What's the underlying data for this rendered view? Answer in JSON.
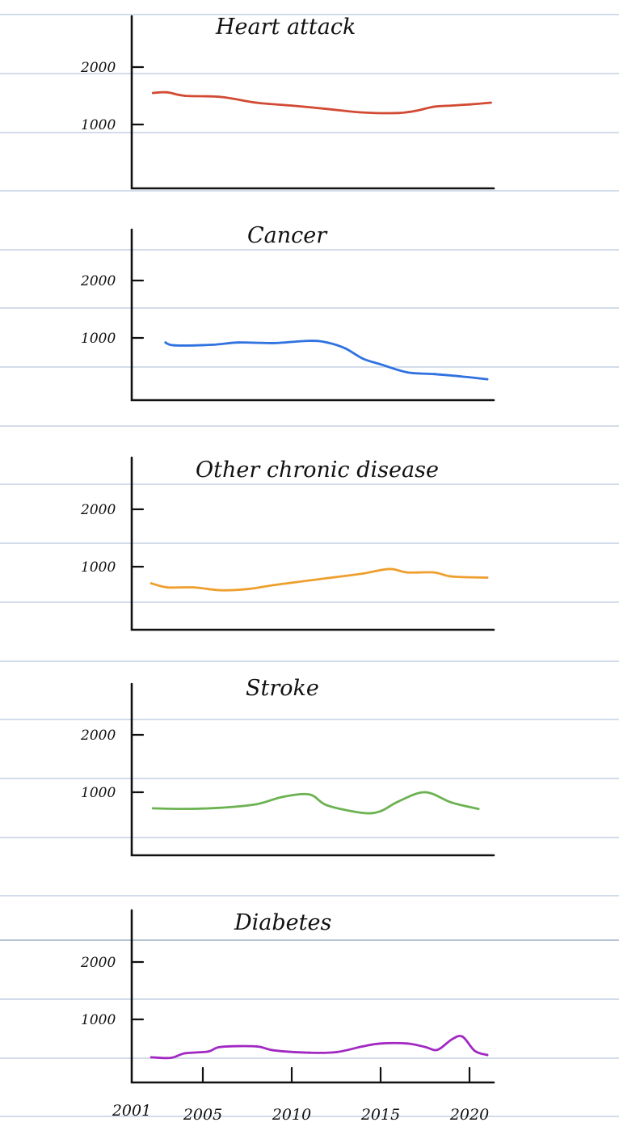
{
  "colors": {
    "paper": "#ffffff",
    "ruled_line": "#b9c8dd",
    "ink": "#111111"
  },
  "chart_data": [
    {
      "type": "line",
      "title": "Heart attack",
      "color": "#d24a33",
      "ylim": [
        0,
        2300
      ],
      "yticks": [
        {
          "value": 1000,
          "label": "1000"
        },
        {
          "value": 2000,
          "label": "2000"
        }
      ],
      "x": [
        2002.2,
        2003,
        2004,
        2006,
        2008,
        2010,
        2012,
        2014,
        2016,
        2017,
        2018,
        2019,
        2020,
        2021.2
      ],
      "values": [
        1550,
        1560,
        1500,
        1480,
        1380,
        1330,
        1270,
        1210,
        1200,
        1240,
        1310,
        1330,
        1350,
        1380
      ]
    },
    {
      "type": "line",
      "title": "Cancer",
      "color": "#2f72e0",
      "ylim": [
        0,
        2300
      ],
      "yticks": [
        {
          "value": 1000,
          "label": "1000"
        },
        {
          "value": 2000,
          "label": "2000"
        }
      ],
      "x": [
        2002.9,
        2003.4,
        2005.5,
        2007,
        2009,
        2011,
        2012,
        2013,
        2014,
        2015,
        2016.5,
        2018,
        2019.5,
        2021
      ],
      "values": [
        920,
        870,
        880,
        920,
        910,
        950,
        920,
        820,
        640,
        540,
        400,
        370,
        330,
        280
      ]
    },
    {
      "type": "line",
      "title": "Other  chronic disease",
      "color": "#ef9f2e",
      "ylim": [
        0,
        2300
      ],
      "yticks": [
        {
          "value": 1000,
          "label": "1000"
        },
        {
          "value": 2000,
          "label": "2000"
        }
      ],
      "x": [
        2002.1,
        2003,
        2004.5,
        2006,
        2007.5,
        2009,
        2011,
        2012.5,
        2014,
        2015.5,
        2016.5,
        2018,
        2019,
        2021
      ],
      "values": [
        710,
        640,
        640,
        590,
        610,
        680,
        760,
        820,
        880,
        960,
        900,
        900,
        830,
        810
      ]
    },
    {
      "type": "line",
      "title": "Stroke",
      "color": "#6cb252",
      "ylim": [
        0,
        2300
      ],
      "yticks": [
        {
          "value": 1000,
          "label": "1000"
        },
        {
          "value": 2000,
          "label": "2000"
        }
      ],
      "x": [
        2002.2,
        2004,
        2006,
        2008,
        2009.5,
        2011,
        2012,
        2014,
        2015,
        2016,
        2017.5,
        2019,
        2020.5
      ],
      "values": [
        720,
        710,
        730,
        790,
        920,
        960,
        770,
        640,
        670,
        840,
        1000,
        820,
        710
      ]
    },
    {
      "type": "line",
      "title": "Diabetes",
      "color": "#a128c2",
      "x_start_label": "2001",
      "xticks": [
        2005,
        2010,
        2015,
        2020
      ],
      "xtick_labels": [
        "2005",
        "2010",
        "2015",
        "2020"
      ],
      "ylim": [
        0,
        2300
      ],
      "yticks": [
        {
          "value": 1000,
          "label": "1000"
        },
        {
          "value": 2000,
          "label": "2000"
        }
      ],
      "x": [
        2002.1,
        2003.2,
        2004,
        2005.3,
        2006,
        2008,
        2009,
        2011,
        2012.5,
        2014,
        2015,
        2016.5,
        2017.5,
        2018.2,
        2019,
        2019.6,
        2020.3,
        2021
      ],
      "values": [
        340,
        330,
        410,
        440,
        520,
        530,
        460,
        420,
        430,
        530,
        580,
        580,
        520,
        470,
        650,
        700,
        450,
        380
      ]
    }
  ]
}
